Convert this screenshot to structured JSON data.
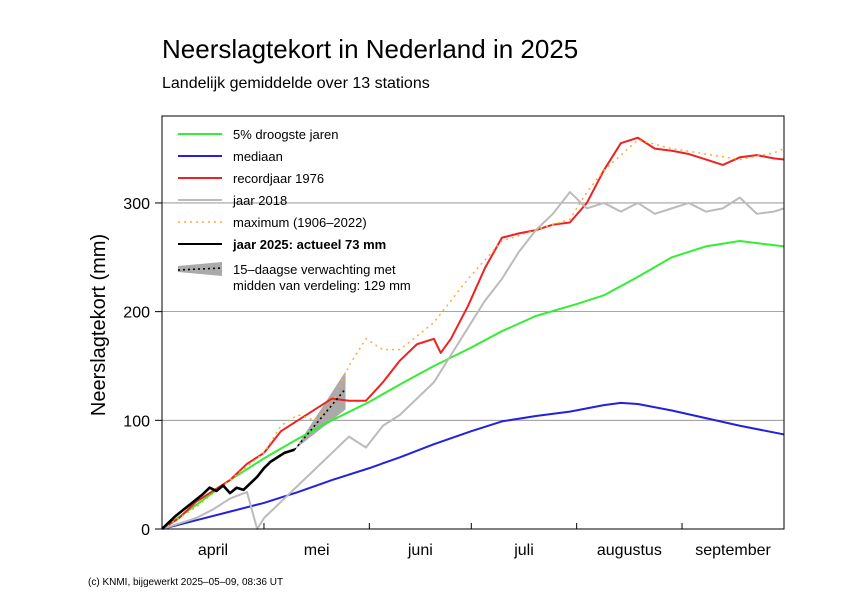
{
  "chart_data": {
    "type": "line",
    "title": "Neerslagtekort in Nederland in 2025",
    "subtitle": "Landelijk gemiddelde over 13 stations",
    "ylabel": "Neerslagtekort (mm)",
    "xlabel": "",
    "ylim": [
      0,
      380
    ],
    "xlim": [
      0,
      183
    ],
    "yticks": [
      0,
      100,
      200,
      300
    ],
    "months": [
      {
        "label": "april",
        "start": 0,
        "end": 30
      },
      {
        "label": "mei",
        "start": 30,
        "end": 61
      },
      {
        "label": "juni",
        "start": 61,
        "end": 91
      },
      {
        "label": "juli",
        "start": 91,
        "end": 122
      },
      {
        "label": "augustus",
        "start": 122,
        "end": 153
      },
      {
        "label": "september",
        "start": 153,
        "end": 183
      }
    ],
    "grid": "horizontal",
    "legend_position": "top-left",
    "series": [
      {
        "name": "5% droogste jaren",
        "color": "#33ee33",
        "style": "solid",
        "x": [
          0,
          10,
          20,
          30,
          40,
          50,
          61,
          70,
          80,
          91,
          100,
          110,
          122,
          130,
          140,
          150,
          160,
          170,
          183
        ],
        "y": [
          0,
          22,
          45,
          65,
          83,
          100,
          117,
          133,
          150,
          167,
          182,
          196,
          207,
          215,
          232,
          250,
          260,
          265,
          260
        ]
      },
      {
        "name": "mediaan",
        "color": "#2222dd",
        "style": "solid",
        "x": [
          0,
          10,
          20,
          30,
          40,
          50,
          61,
          70,
          80,
          91,
          100,
          110,
          120,
          130,
          135,
          140,
          150,
          160,
          170,
          183
        ],
        "y": [
          0,
          8,
          16,
          24,
          34,
          45,
          56,
          66,
          78,
          90,
          99,
          104,
          108,
          114,
          116,
          115,
          109,
          102,
          95,
          87
        ]
      },
      {
        "name": "recordjaar 1976",
        "color": "#ee2222",
        "style": "solid",
        "x": [
          0,
          5,
          10,
          15,
          20,
          25,
          30,
          35,
          40,
          45,
          50,
          55,
          60,
          65,
          70,
          75,
          80,
          82,
          85,
          90,
          95,
          100,
          105,
          110,
          115,
          120,
          125,
          130,
          135,
          140,
          145,
          150,
          155,
          160,
          165,
          170,
          175,
          180,
          183
        ],
        "y": [
          0,
          10,
          25,
          35,
          45,
          60,
          70,
          90,
          100,
          110,
          120,
          118,
          118,
          135,
          155,
          170,
          175,
          162,
          175,
          205,
          240,
          268,
          272,
          275,
          280,
          282,
          300,
          330,
          355,
          360,
          350,
          348,
          345,
          340,
          335,
          342,
          344,
          341,
          340
        ]
      },
      {
        "name": "jaar 2018",
        "color": "#bbbbbb",
        "style": "solid",
        "x": [
          0,
          5,
          10,
          15,
          20,
          25,
          28,
          30,
          35,
          40,
          45,
          50,
          55,
          60,
          65,
          70,
          75,
          80,
          85,
          90,
          95,
          100,
          105,
          110,
          115,
          120,
          125,
          130,
          135,
          140,
          145,
          150,
          155,
          160,
          165,
          170,
          175,
          180,
          183
        ],
        "y": [
          0,
          5,
          10,
          18,
          28,
          34,
          0,
          10,
          25,
          40,
          55,
          70,
          85,
          75,
          95,
          105,
          120,
          135,
          160,
          185,
          210,
          230,
          255,
          275,
          290,
          310,
          295,
          300,
          292,
          300,
          290,
          295,
          300,
          292,
          295,
          305,
          290,
          292,
          295
        ]
      },
      {
        "name": "maximum (1906–2022)",
        "color": "#ffaa33",
        "style": "dotted",
        "x": [
          0,
          10,
          20,
          30,
          35,
          40,
          45,
          50,
          55,
          60,
          65,
          70,
          80,
          90,
          100,
          110,
          120,
          125,
          130,
          140,
          150,
          160,
          170,
          180,
          183
        ],
        "y": [
          0,
          20,
          45,
          70,
          95,
          105,
          100,
          115,
          150,
          175,
          165,
          165,
          190,
          230,
          265,
          275,
          285,
          310,
          330,
          358,
          350,
          345,
          340,
          346,
          350
        ]
      },
      {
        "name": "jaar 2025: actueel 73 mm",
        "color": "#000000",
        "style": "solid",
        "x": [
          0,
          4,
          8,
          12,
          14,
          16,
          18,
          20,
          22,
          24,
          26,
          28,
          30,
          32,
          34,
          36,
          38,
          39
        ],
        "y": [
          0,
          12,
          22,
          32,
          38,
          35,
          40,
          33,
          38,
          36,
          42,
          48,
          56,
          62,
          66,
          70,
          72,
          73
        ]
      }
    ],
    "forecast": {
      "name": "15–daagse verwachting met midden van verdeling: 129 mm",
      "color": "#000000",
      "band_color": "#aaaaaa",
      "x": [
        39,
        54
      ],
      "y": [
        73,
        129
      ],
      "band_upper": [
        73,
        145
      ],
      "band_lower": [
        73,
        110
      ]
    },
    "footer": "(c) KNMI, bijgewerkt 2025–05–09, 08:36 UT"
  }
}
